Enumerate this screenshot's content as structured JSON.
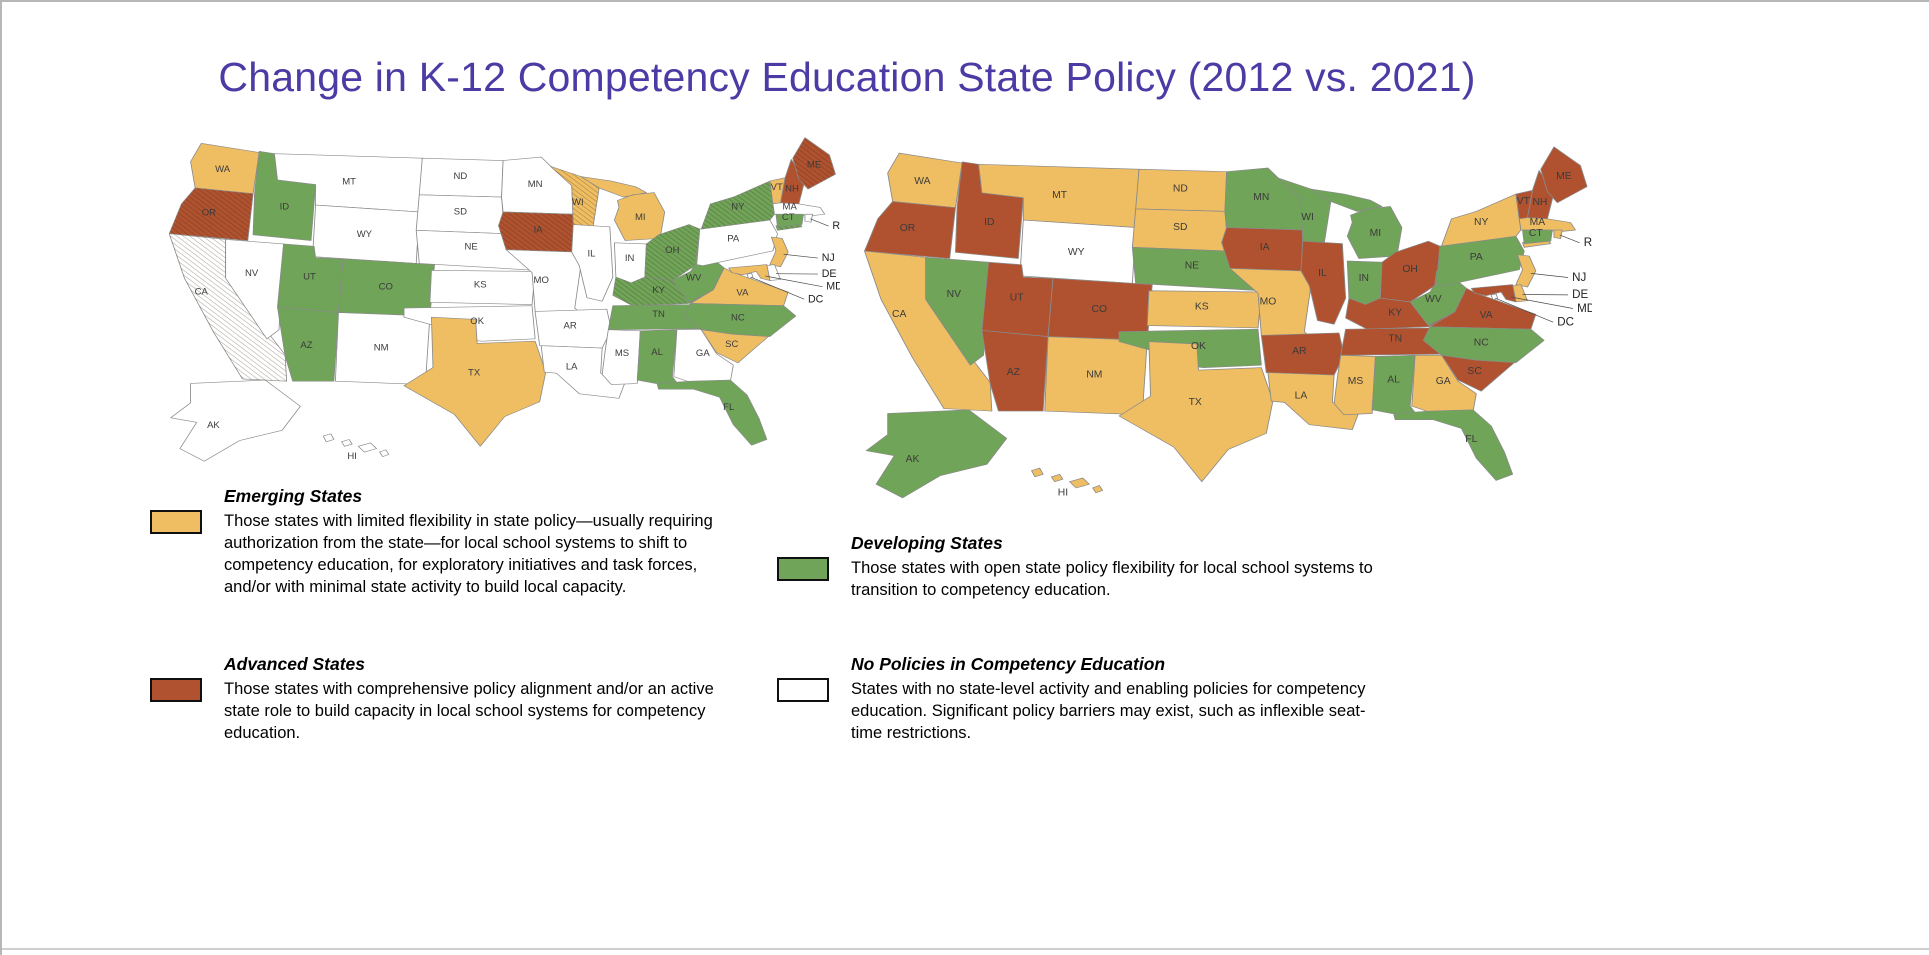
{
  "title": "Change in K-12 Competency Education State Policy (2012 vs. 2021)",
  "colors": {
    "emerging": "#F0BE62",
    "developing": "#70A458",
    "advanced": "#B0522F",
    "none": "#FFFFFF",
    "state_border": "#8A8A8A",
    "label": "#3B3B3B",
    "title": "#4C3BA4"
  },
  "chart_data": {
    "type": "heatmap",
    "subtype": "us-state-choropleth-pair",
    "maps": [
      {
        "year": "2012",
        "position": "left",
        "hatched": [
          "CA",
          "OR",
          "WI",
          "IA",
          "OH",
          "KY",
          "NY",
          "ME"
        ],
        "states": {
          "WA": "emerging",
          "OR": "advanced",
          "CA": "none",
          "NV": "none",
          "ID": "developing",
          "MT": "none",
          "WY": "none",
          "UT": "developing",
          "CO": "developing",
          "AZ": "developing",
          "NM": "none",
          "ND": "none",
          "SD": "none",
          "NE": "none",
          "KS": "none",
          "OK": "none",
          "TX": "emerging",
          "MN": "none",
          "IA": "advanced",
          "MO": "none",
          "AR": "none",
          "LA": "none",
          "WI": "emerging",
          "IL": "none",
          "MS": "none",
          "MI": "emerging",
          "IN": "none",
          "OH": "developing",
          "KY": "developing",
          "TN": "developing",
          "AL": "developing",
          "GA": "none",
          "FL": "developing",
          "WV": "developing",
          "VA": "emerging",
          "NC": "developing",
          "SC": "emerging",
          "PA": "none",
          "NY": "developing",
          "NJ": "emerging",
          "DE": "none",
          "MD": "emerging",
          "DC": "none",
          "CT": "developing",
          "RI": "none",
          "MA": "none",
          "VT": "emerging",
          "NH": "advanced",
          "ME": "advanced",
          "AK": "none",
          "HI": "none"
        }
      },
      {
        "year": "2021",
        "position": "right",
        "hatched": [],
        "states": {
          "WA": "emerging",
          "OR": "advanced",
          "CA": "emerging",
          "NV": "developing",
          "ID": "advanced",
          "MT": "emerging",
          "WY": "none",
          "UT": "advanced",
          "CO": "advanced",
          "AZ": "advanced",
          "NM": "emerging",
          "ND": "emerging",
          "SD": "emerging",
          "NE": "developing",
          "KS": "emerging",
          "OK": "developing",
          "TX": "emerging",
          "MN": "developing",
          "IA": "advanced",
          "MO": "emerging",
          "AR": "advanced",
          "LA": "emerging",
          "WI": "developing",
          "IL": "advanced",
          "MS": "emerging",
          "MI": "developing",
          "IN": "developing",
          "OH": "advanced",
          "KY": "advanced",
          "TN": "advanced",
          "AL": "developing",
          "GA": "emerging",
          "FL": "developing",
          "WV": "developing",
          "VA": "advanced",
          "NC": "developing",
          "SC": "advanced",
          "PA": "developing",
          "NY": "emerging",
          "NJ": "emerging",
          "DE": "emerging",
          "MD": "advanced",
          "DC": "none",
          "CT": "developing",
          "RI": "emerging",
          "MA": "emerging",
          "VT": "advanced",
          "NH": "advanced",
          "ME": "advanced",
          "AK": "developing",
          "HI": "emerging"
        }
      }
    ]
  },
  "legend": {
    "emerging": {
      "title": "Emerging States",
      "body": "Those states with limited flexibility in state policy—usually requiring authorization from the state—for local school systems to shift to competency education, for exploratory initiatives and task forces, and/or with minimal state activity to build local capacity."
    },
    "developing": {
      "title": "Developing States",
      "body": "Those states with open state policy flexibility for local school systems to transition to competency education."
    },
    "advanced": {
      "title": "Advanced States",
      "body": "Those states with comprehensive policy alignment and/or an active state role to build capacity in local school systems for competency education."
    },
    "none": {
      "title": "No Policies in Competency Education",
      "body": "States with no state-level activity and enabling policies for competency education. Significant policy barriers may exist, such as inflexible seat-time restrictions."
    }
  }
}
